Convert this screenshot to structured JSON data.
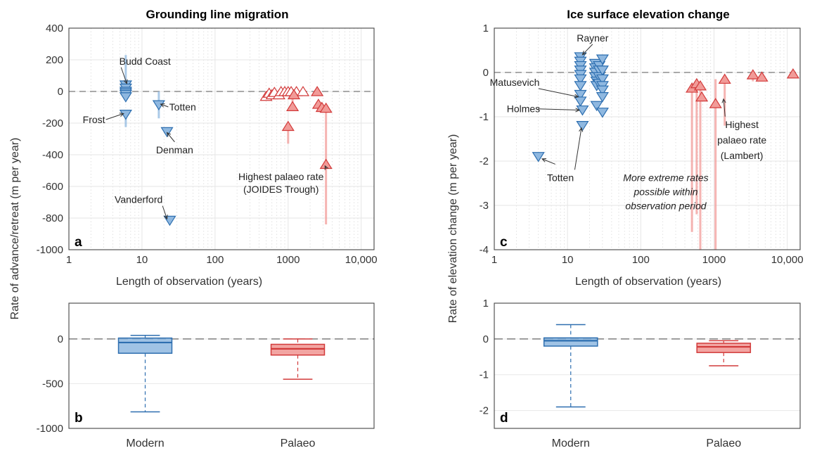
{
  "colors": {
    "modern": "#5b9bd5",
    "modern_fill": "#8fb8e0",
    "modern_dark": "#2e6fb0",
    "palaeo": "#e8595a",
    "palaeo_fill": "#f19b98",
    "palaeo_dark": "#d23a3a"
  },
  "chart_data": [
    {
      "panel": "a",
      "type": "scatter",
      "title": "Grounding line migration",
      "xlabel": "Length of observation (years)",
      "ylabel": "Rate of advance/retreat  (m per year)",
      "xscale": "log",
      "xlim": [
        1,
        15000
      ],
      "ylim": [
        -1000,
        400
      ],
      "xticks": [
        1,
        10,
        100,
        1000,
        10000
      ],
      "xtick_labels": [
        "1",
        "10",
        "100",
        "1000",
        "10,000"
      ],
      "yticks": [
        -1000,
        -800,
        -600,
        -400,
        -200,
        0,
        200,
        400
      ],
      "ytick_labels": [
        "-1000",
        "-800",
        "-600",
        "-400",
        "-200",
        "0",
        "200",
        "400"
      ],
      "grid": true,
      "reference_line": 0,
      "modern_points": [
        {
          "x": 6,
          "y": 40,
          "lo": 40,
          "hi": 230
        },
        {
          "x": 6,
          "y": 20
        },
        {
          "x": 6,
          "y": 0
        },
        {
          "x": 6,
          "y": -10
        },
        {
          "x": 6,
          "y": -20
        },
        {
          "x": 6,
          "y": -35
        },
        {
          "x": 6,
          "y": -145,
          "lo": -225,
          "hi": -145
        },
        {
          "x": 17,
          "y": -85,
          "lo": -170,
          "hi": 0
        },
        {
          "x": 22,
          "y": -255
        },
        {
          "x": 24,
          "y": -815
        }
      ],
      "palaeo_points": [
        {
          "x": 500,
          "y": -30,
          "filled": false
        },
        {
          "x": 550,
          "y": -10,
          "filled": false
        },
        {
          "x": 600,
          "y": -20,
          "filled": false
        },
        {
          "x": 650,
          "y": -5,
          "filled": false
        },
        {
          "x": 750,
          "y": -20,
          "filled": false
        },
        {
          "x": 800,
          "y": 0,
          "filled": false
        },
        {
          "x": 900,
          "y": 0,
          "filled": false
        },
        {
          "x": 1000,
          "y": 0,
          "filled": false
        },
        {
          "x": 1100,
          "y": 0,
          "filled": false
        },
        {
          "x": 1300,
          "y": 0,
          "filled": false
        },
        {
          "x": 1600,
          "y": 0,
          "filled": false
        },
        {
          "x": 1000,
          "y": -220,
          "filled": true,
          "lo": -330,
          "hi": -220
        },
        {
          "x": 1150,
          "y": -95,
          "filled": true,
          "lo": -95,
          "hi": 0
        },
        {
          "x": 1200,
          "y": -20,
          "filled": true
        },
        {
          "x": 2500,
          "y": 0,
          "filled": true
        },
        {
          "x": 2600,
          "y": -80,
          "filled": true,
          "lo": -130,
          "hi": -80
        },
        {
          "x": 2900,
          "y": -100,
          "filled": true
        },
        {
          "x": 3300,
          "y": -105,
          "filled": true
        },
        {
          "x": 3300,
          "y": -460,
          "filled": true,
          "lo": -840,
          "hi": -100
        }
      ],
      "annotations": [
        {
          "text": "Budd Coast",
          "x": 6.2,
          "y": 50,
          "tx": 11,
          "ty": 170
        },
        {
          "text": "Frost",
          "x": 5.6,
          "y": -140,
          "tx": 2.2,
          "ty": -200
        },
        {
          "text": "Totten",
          "x": 18,
          "y": -80,
          "tx": 36,
          "ty": -120
        },
        {
          "text": "Denman",
          "x": 22,
          "y": -260,
          "tx": 28,
          "ty": -390
        },
        {
          "text": "Vanderford",
          "x": 22,
          "y": -805,
          "tx": 9,
          "ty": -705
        },
        {
          "text": "Highest palaeo rate",
          "x": 3200,
          "y": -470,
          "tx": 800,
          "ty": -560
        },
        {
          "text": "(JOIDES Trough)",
          "x": null,
          "y": null,
          "tx": 800,
          "ty": -640
        }
      ],
      "panel_label": "a"
    },
    {
      "panel": "c",
      "type": "scatter",
      "title": "Ice surface elevation change",
      "xlabel": "Length of observation (years)",
      "ylabel": "Rate of elevation change  (m per year)",
      "xscale": "log",
      "xlim": [
        1,
        15000
      ],
      "ylim": [
        -4,
        1
      ],
      "xticks": [
        1,
        10,
        100,
        1000,
        10000
      ],
      "xtick_labels": [
        "1",
        "10",
        "100",
        "1000",
        "10,000"
      ],
      "yticks": [
        -4,
        -3,
        -2,
        -1,
        0,
        1
      ],
      "ytick_labels": [
        "-4",
        "-3",
        "-2",
        "-1",
        "0",
        "1"
      ],
      "grid": true,
      "reference_line": 0,
      "modern_points": [
        {
          "x": 4,
          "y": -1.9
        },
        {
          "x": 15,
          "y": 0.35
        },
        {
          "x": 15,
          "y": 0.25
        },
        {
          "x": 15,
          "y": 0.15
        },
        {
          "x": 15,
          "y": 0.05
        },
        {
          "x": 15,
          "y": -0.05
        },
        {
          "x": 15,
          "y": -0.15
        },
        {
          "x": 15,
          "y": -0.3
        },
        {
          "x": 15,
          "y": -0.5
        },
        {
          "x": 15,
          "y": -0.65
        },
        {
          "x": 16,
          "y": -0.85
        },
        {
          "x": 16,
          "y": -1.2
        },
        {
          "x": 24,
          "y": 0.2
        },
        {
          "x": 24,
          "y": 0.1
        },
        {
          "x": 24,
          "y": 0
        },
        {
          "x": 24,
          "y": -0.1
        },
        {
          "x": 25,
          "y": -0.2
        },
        {
          "x": 25,
          "y": -0.3
        },
        {
          "x": 25,
          "y": -0.75
        },
        {
          "x": 27,
          "y": 0.15
        },
        {
          "x": 27,
          "y": 0.05
        },
        {
          "x": 27,
          "y": -0.1
        },
        {
          "x": 27,
          "y": -0.25
        },
        {
          "x": 30,
          "y": 0.3
        },
        {
          "x": 30,
          "y": 0.05
        },
        {
          "x": 30,
          "y": -0.15
        },
        {
          "x": 30,
          "y": -0.3
        },
        {
          "x": 30,
          "y": -0.4
        },
        {
          "x": 30,
          "y": -0.55
        },
        {
          "x": 30,
          "y": -0.9
        }
      ],
      "palaeo_points": [
        {
          "x": 500,
          "y": -0.35,
          "lo": -3.6,
          "hi": -0.35
        },
        {
          "x": 580,
          "y": -0.25,
          "lo": -3.2,
          "hi": -0.25
        },
        {
          "x": 650,
          "y": -0.3,
          "lo": -4,
          "hi": -0.3
        },
        {
          "x": 680,
          "y": -0.55
        },
        {
          "x": 1050,
          "y": -0.7,
          "lo": -4,
          "hi": -0.15
        },
        {
          "x": 1400,
          "y": -0.15,
          "lo": -1.2,
          "hi": -0.15
        },
        {
          "x": 3400,
          "y": -0.05,
          "lo": -0.2,
          "hi": -0.05
        },
        {
          "x": 4500,
          "y": -0.1
        },
        {
          "x": 12000,
          "y": -0.03
        }
      ],
      "annotations": [
        {
          "text": "Rayner",
          "x": 16,
          "y": 0.4,
          "tx": 22,
          "ty": 0.7
        },
        {
          "text": "Matusevich",
          "x": 14,
          "y": -0.55,
          "tx": 1.9,
          "ty": -0.3
        },
        {
          "text": "Holmes",
          "x": 14.5,
          "y": -0.85,
          "tx": 2.5,
          "ty": -0.9
        },
        {
          "text": "Totten",
          "x": 15.5,
          "y": -1.25,
          "tx": 8,
          "ty": -2.45
        },
        {
          "text": "",
          "x": 4.5,
          "y": -1.95,
          "tx": 6.8,
          "ty": -2.15
        },
        {
          "text": "Highest",
          "x": 1350,
          "y": -0.6,
          "tx": 2400,
          "ty": -1.25
        },
        {
          "text": "palaeo rate",
          "x": null,
          "y": null,
          "tx": 2400,
          "ty": -1.6
        },
        {
          "text": "(Lambert)",
          "x": null,
          "y": null,
          "tx": 2400,
          "ty": -1.95
        }
      ],
      "note_lines": [
        "More extreme rates",
        "possible within",
        "observation period"
      ],
      "panel_label": "c"
    },
    {
      "panel": "b",
      "type": "box",
      "categories": [
        "Modern",
        "Palaeo"
      ],
      "ylabel": "",
      "ylim": [
        -1000,
        400
      ],
      "yticks": [
        -1000,
        -500,
        0
      ],
      "ytick_labels": [
        "-1000",
        "-500",
        "0"
      ],
      "reference_line": 0,
      "boxes": [
        {
          "name": "Modern",
          "min": -815,
          "q1": -160,
          "median": -40,
          "q3": 10,
          "max": 40
        },
        {
          "name": "Palaeo",
          "min": -450,
          "q1": -180,
          "median": -110,
          "q3": -60,
          "max": 0
        }
      ],
      "panel_label": "b"
    },
    {
      "panel": "d",
      "type": "box",
      "categories": [
        "Modern",
        "Palaeo"
      ],
      "ylabel": "",
      "ylim": [
        -2.5,
        1
      ],
      "yticks": [
        -2,
        -1,
        0,
        1
      ],
      "ytick_labels": [
        "-2",
        "-1",
        "0",
        "1"
      ],
      "reference_line": 0,
      "boxes": [
        {
          "name": "Modern",
          "min": -1.9,
          "q1": -0.2,
          "median": -0.05,
          "q3": 0.03,
          "max": 0.4
        },
        {
          "name": "Palaeo",
          "min": -0.75,
          "q1": -0.38,
          "median": -0.22,
          "q3": -0.12,
          "max": -0.05
        }
      ],
      "panel_label": "d"
    }
  ]
}
